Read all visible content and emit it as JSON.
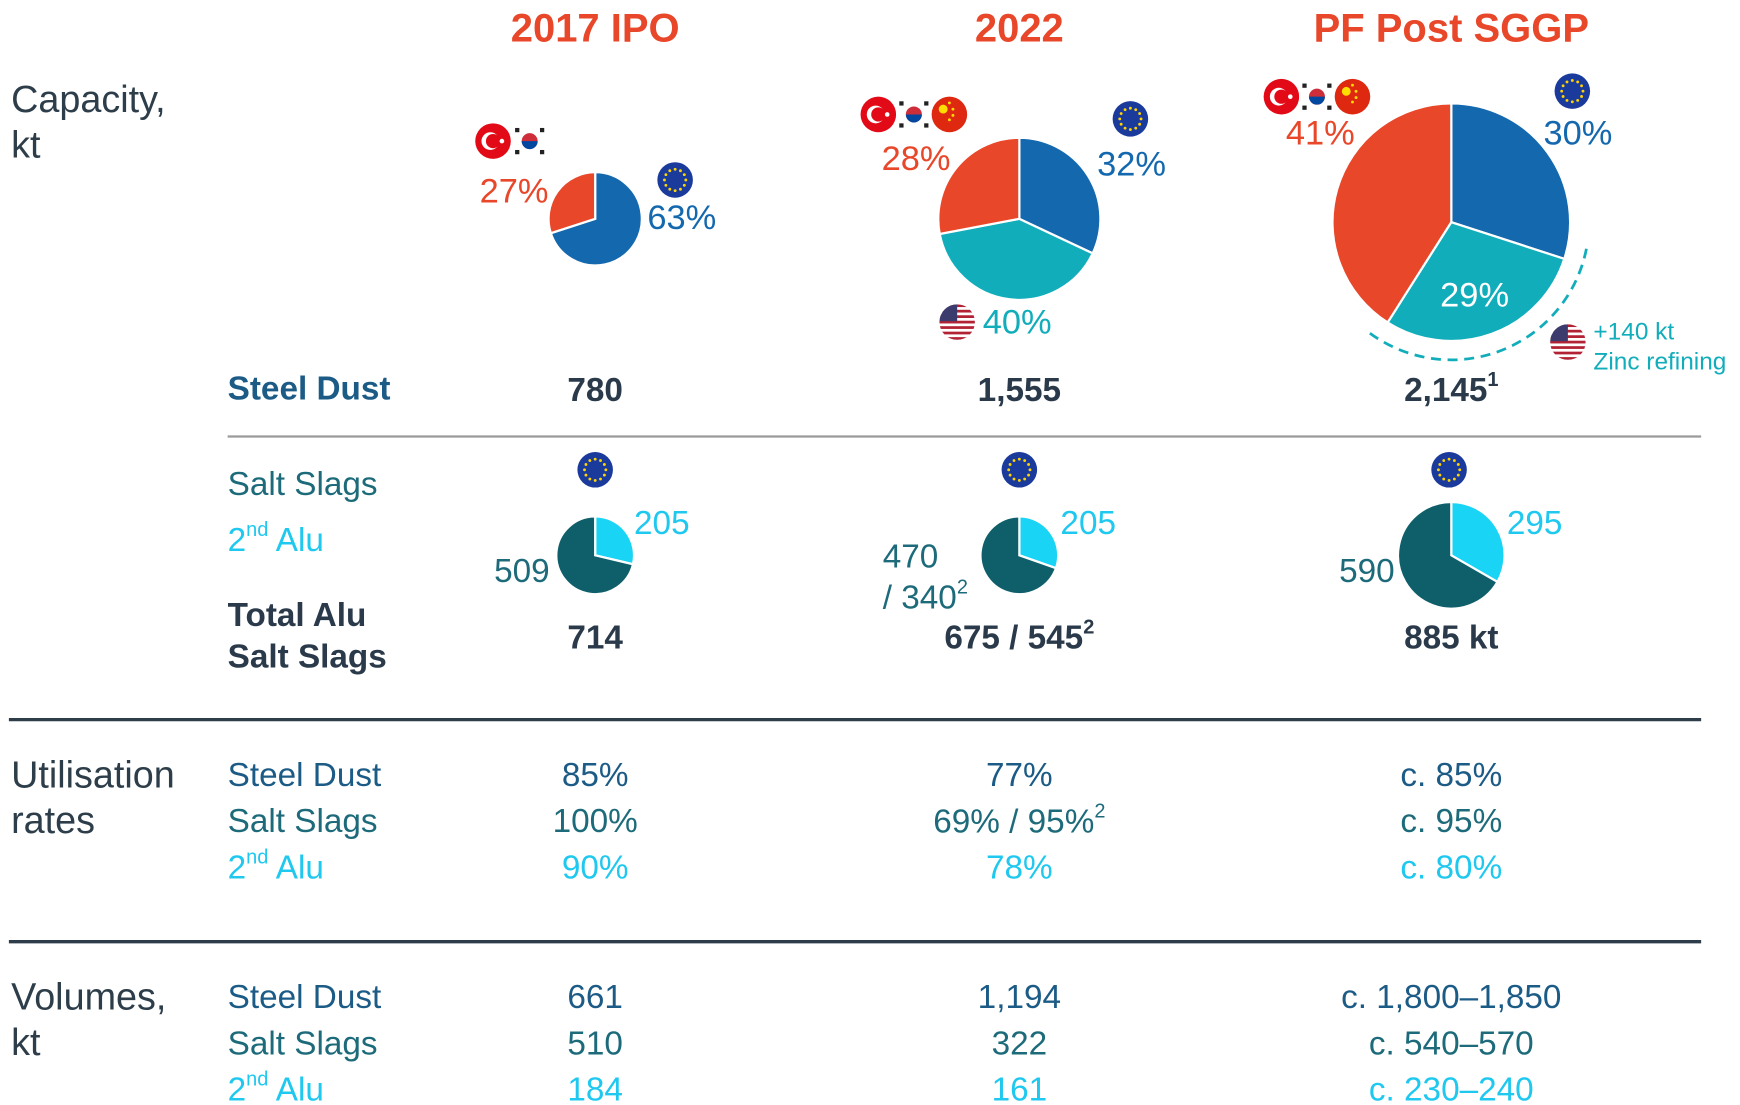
{
  "columns": [
    "2017 IPO",
    "2022",
    "PF Post SGGP"
  ],
  "capacity": {
    "label": [
      "Capacity,",
      "kt"
    ],
    "pies": [
      {
        "slices": [
          {
            "value": 63,
            "label": "63%",
            "color": "#1468ae"
          },
          {
            "value": 27,
            "label": "27%",
            "color": "#e8472a"
          }
        ]
      },
      {
        "slices": [
          {
            "value": 32,
            "label": "32%",
            "color": "#1468ae"
          },
          {
            "value": 40,
            "label": "40%",
            "color": "#12adbb"
          },
          {
            "value": 28,
            "label": "28%",
            "color": "#e8472a"
          }
        ]
      },
      {
        "slices": [
          {
            "value": 30,
            "label": "30%",
            "color": "#1468ae"
          },
          {
            "value": 29,
            "label": "29%",
            "color": "#12adbb"
          },
          {
            "value": 41,
            "label": "41%",
            "color": "#e8472a"
          }
        ]
      }
    ],
    "annotation": [
      "+140 kt",
      "Zinc refining"
    ]
  },
  "steel_dust": {
    "label": "Steel Dust",
    "values": [
      "780",
      "1,555",
      [
        {
          "t": "2,145"
        },
        {
          "t": "1",
          "sup": true
        }
      ]
    ]
  },
  "salt_slags": {
    "labels": [
      "Salt Slags",
      [
        {
          "t": "2"
        },
        {
          "t": "nd",
          "sup": true
        },
        {
          "t": " Alu"
        }
      ]
    ],
    "pies": [
      {
        "slices": [
          {
            "value": 205,
            "label": [
              "205"
            ],
            "color": "#1ad4f5"
          },
          {
            "value": 509,
            "label": [
              "509"
            ],
            "color": "#0f5f6b"
          }
        ]
      },
      {
        "slices": [
          {
            "value": 205,
            "label": [
              "205"
            ],
            "color": "#1ad4f5"
          },
          {
            "value": 470,
            "label": [
              "470",
              [
                {
                  "t": "/ 340"
                },
                {
                  "t": "2",
                  "sup": true
                }
              ]
            ],
            "color": "#0f5f6b"
          }
        ]
      },
      {
        "slices": [
          {
            "value": 295,
            "label": [
              "295"
            ],
            "color": "#1ad4f5"
          },
          {
            "value": 590,
            "label": [
              "590"
            ],
            "color": "#0f5f6b"
          }
        ]
      }
    ],
    "total_label": [
      "Total Alu",
      "Salt Slags"
    ],
    "totals": [
      "714",
      [
        {
          "t": "675 / 545"
        },
        {
          "t": "2",
          "sup": true
        }
      ],
      "885 kt"
    ]
  },
  "utilisation": {
    "label": [
      "Utilisation",
      "rates"
    ],
    "rows": [
      {
        "label": "Steel Dust",
        "values": [
          "85%",
          "77%",
          "c. 85%"
        ]
      },
      {
        "label": "Salt Slags",
        "values": [
          "100%",
          [
            {
              "t": "69% / 95%"
            },
            {
              "t": "2",
              "sup": true
            }
          ],
          "c. 95%"
        ]
      },
      {
        "label": [
          {
            "t": "2"
          },
          {
            "t": "nd",
            "sup": true
          },
          {
            "t": " Alu"
          }
        ],
        "values": [
          "90%",
          "78%",
          "c. 80%"
        ]
      }
    ]
  },
  "volumes": {
    "label": [
      "Volumes,",
      "kt"
    ],
    "rows": [
      {
        "label": "Steel Dust",
        "values": [
          "661",
          "1,194",
          "c. 1,800–1,850"
        ]
      },
      {
        "label": "Salt Slags",
        "values": [
          "510",
          "322",
          "c. 540–570"
        ]
      },
      {
        "label": [
          {
            "t": "2"
          },
          {
            "t": "nd",
            "sup": true
          },
          {
            "t": " Alu"
          }
        ],
        "values": [
          "184",
          "161",
          "c. 230–240"
        ]
      }
    ]
  }
}
